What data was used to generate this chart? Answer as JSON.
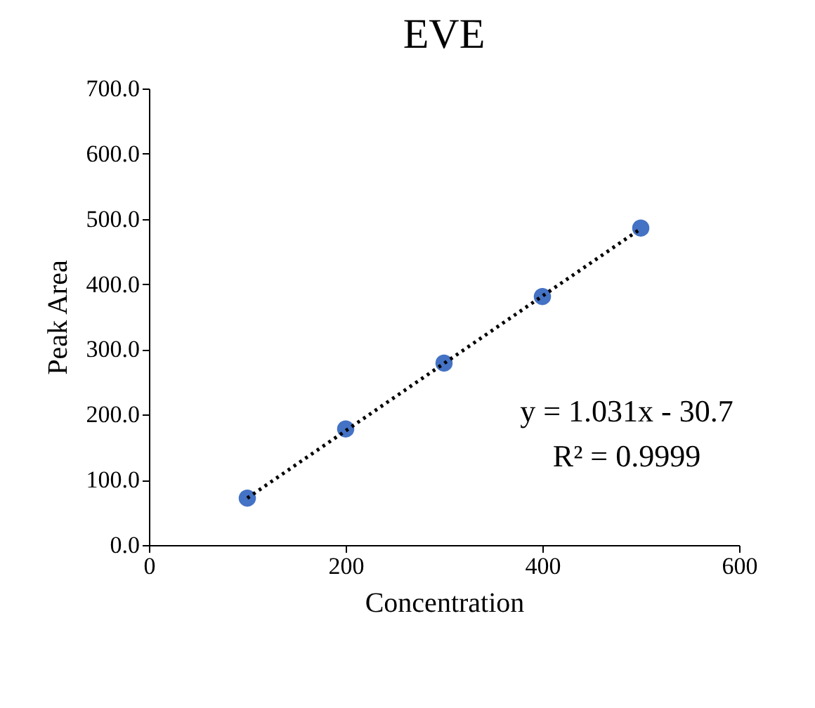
{
  "chart_data": {
    "type": "scatter",
    "title": "EVE",
    "xlabel": "Concentration",
    "ylabel": "Peak Area",
    "x": [
      100,
      200,
      300,
      400,
      500
    ],
    "series": [
      {
        "color": "#4472c4",
        "marker": "circle",
        "values": [
          72,
          178,
          279,
          381,
          486
        ]
      },
      {
        "type": "line",
        "color": "#000000",
        "marker": "none",
        "line_style": "dotted",
        "x": [
          100,
          500
        ],
        "values": [
          72,
          485
        ]
      }
    ],
    "xlim": [
      0,
      600
    ],
    "xticks": [
      0,
      200,
      400,
      600
    ],
    "ylim": [
      0,
      700
    ],
    "yticks": [
      {
        "value": 0,
        "label": "0.0"
      },
      {
        "value": 100,
        "label": "100.0"
      },
      {
        "value": 200,
        "label": "200.0"
      },
      {
        "value": 300,
        "label": "300.0"
      },
      {
        "value": 400,
        "label": "400.0"
      },
      {
        "value": 500,
        "label": "500.0"
      },
      {
        "value": 600,
        "label": "600.0"
      },
      {
        "value": 700,
        "label": "700.0"
      }
    ],
    "grid": false,
    "annotations": [
      "y = 1.031x - 30.7",
      "R² = 0.9999"
    ]
  }
}
